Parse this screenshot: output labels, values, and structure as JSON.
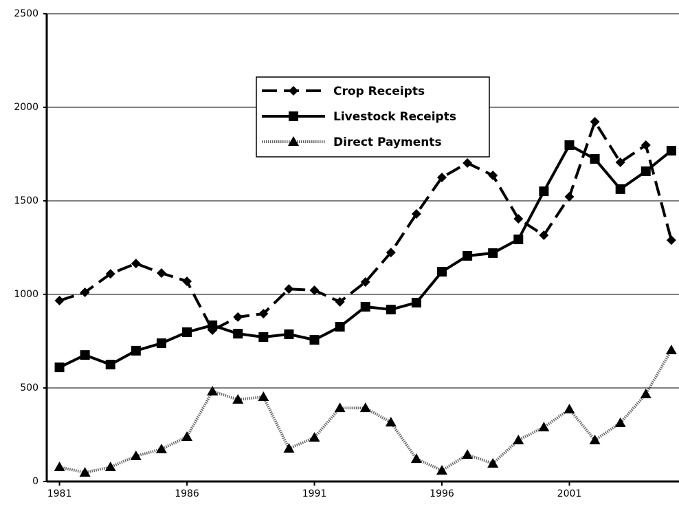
{
  "chart_data": {
    "type": "line",
    "x": [
      1981,
      1982,
      1983,
      1984,
      1985,
      1986,
      1987,
      1988,
      1989,
      1990,
      1991,
      1992,
      1993,
      1994,
      1995,
      1996,
      1997,
      1998,
      1999,
      2000,
      2001,
      2002,
      2003,
      2004,
      2005
    ],
    "xlim": [
      1980.5,
      2005.3
    ],
    "xticks": [
      1981,
      1986,
      1991,
      1996,
      2001
    ],
    "ylim": [
      0,
      2500
    ],
    "yticks": [
      0,
      500,
      1000,
      1500,
      2000,
      2500
    ],
    "grid": true,
    "legend": "upper center",
    "series": [
      {
        "name": "Crop Receipts",
        "color": "#000000",
        "marker": "diamond",
        "line_style": "dashed",
        "values": [
          967,
          1011,
          1110,
          1165,
          1114,
          1070,
          809,
          879,
          897,
          1029,
          1022,
          960,
          1066,
          1224,
          1430,
          1625,
          1702,
          1636,
          1404,
          1316,
          1522,
          1923,
          1706,
          1798,
          1290
        ]
      },
      {
        "name": "Livestock Receipts",
        "color": "#000000",
        "marker": "square",
        "line_style": "solid",
        "values": [
          610,
          676,
          625,
          699,
          739,
          798,
          835,
          790,
          772,
          787,
          757,
          827,
          934,
          919,
          956,
          1121,
          1206,
          1221,
          1294,
          1551,
          1798,
          1724,
          1563,
          1658,
          1768
        ]
      },
      {
        "name": "Direct Payments",
        "color": "#000000",
        "marker": "triangle",
        "line_style": "dotted",
        "values": [
          77,
          48,
          77,
          136,
          173,
          239,
          482,
          438,
          452,
          176,
          235,
          393,
          393,
          316,
          121,
          59,
          143,
          96,
          221,
          290,
          386,
          221,
          313,
          467,
          702
        ]
      }
    ]
  }
}
